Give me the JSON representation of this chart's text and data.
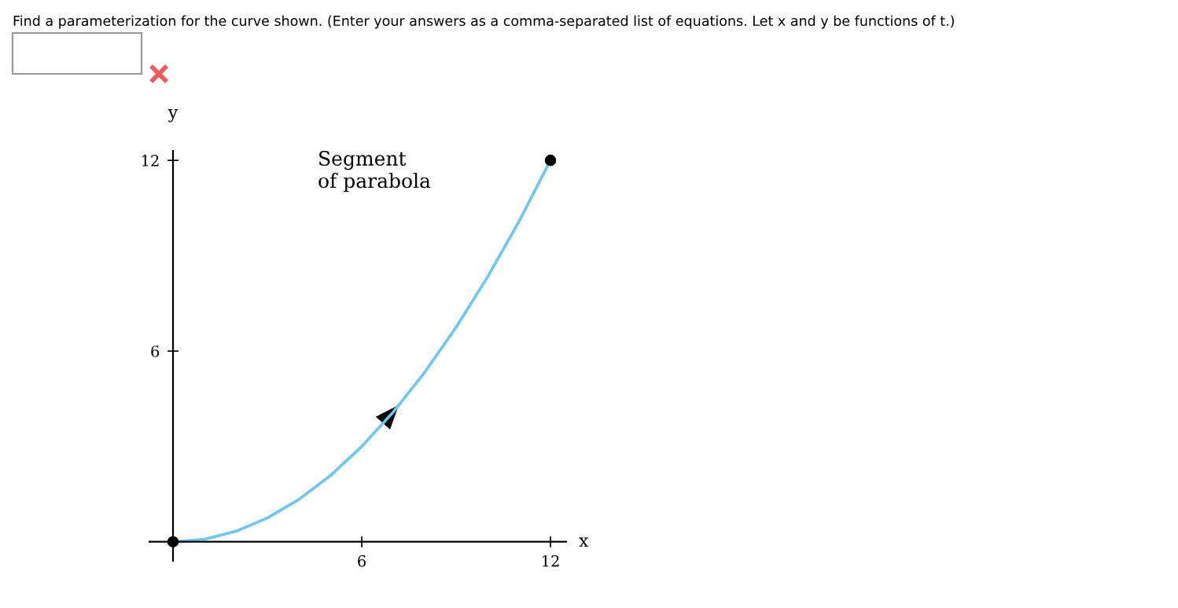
{
  "chart_data": {
    "type": "line",
    "title": "Find a parameterization for the curve shown. (Enter your answers as a comma-separated list of equations. Let x and y be functions of t.)",
    "xlabel": "x",
    "ylabel": "y",
    "x": [
      0,
      1,
      2,
      3,
      4,
      5,
      6,
      7,
      8,
      9,
      10,
      11,
      12
    ],
    "series": [
      {
        "color": "#6cc8f2",
        "marker": "none",
        "values": [
          0,
          0.08,
          0.33,
          0.75,
          1.33,
          2.08,
          3,
          4.08,
          5.33,
          6.75,
          8.33,
          10.08,
          12
        ]
      },
      {
        "type": "scatter",
        "marker": "circle",
        "color": "#000000",
        "x": [
          0,
          12
        ],
        "values": [
          0,
          12
        ]
      }
    ],
    "annotations": [
      "Segment\nof parabola"
    ],
    "xlim": [
      -0.75,
      12.5
    ],
    "ylim": [
      -0.6,
      12.3
    ],
    "xticks": [
      6,
      12
    ],
    "yticks": [
      6,
      12
    ],
    "grid": false,
    "line_style": "solid"
  }
}
